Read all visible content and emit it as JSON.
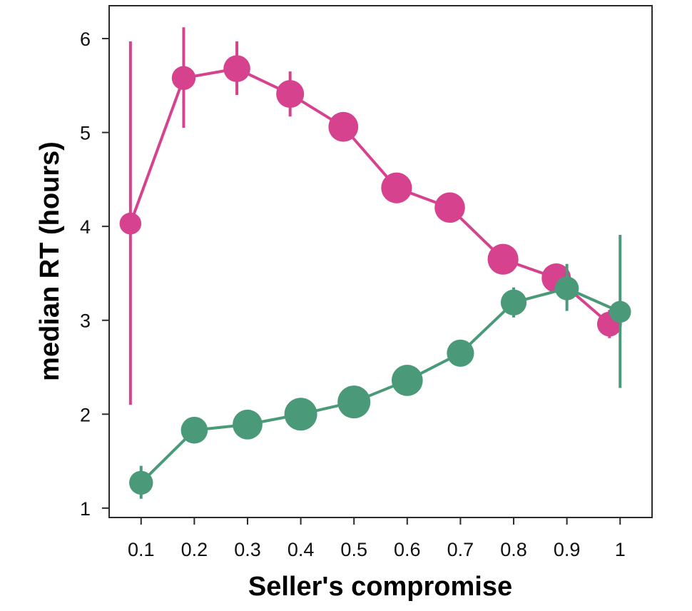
{
  "chart_data": {
    "type": "scatter",
    "xlabel": "Seller's compromise",
    "ylabel": "median RT (hours)",
    "xlim": [
      0.04,
      1.06
    ],
    "ylim": [
      0.9,
      6.35
    ],
    "x_ticks": [
      "0.1",
      "0.2",
      "0.3",
      "0.4",
      "0.5",
      "0.6",
      "0.7",
      "0.8",
      "0.9",
      "1"
    ],
    "y_ticks": [
      "1",
      "2",
      "3",
      "4",
      "5",
      "6"
    ],
    "grid": false,
    "legend": "none",
    "marker_size_note": "marker size varies by point",
    "series": [
      {
        "color": "#d6428e",
        "points": [
          {
            "x": 0.08,
            "y": 4.03,
            "err_low": 2.1,
            "err_high": 5.97,
            "size": 0.45
          },
          {
            "x": 0.18,
            "y": 5.58,
            "err_low": 5.05,
            "err_high": 6.12,
            "size": 0.55
          },
          {
            "x": 0.28,
            "y": 5.68,
            "err_low": 5.4,
            "err_high": 5.97,
            "size": 0.7
          },
          {
            "x": 0.38,
            "y": 5.41,
            "err_low": 5.17,
            "err_high": 5.65,
            "size": 0.75
          },
          {
            "x": 0.48,
            "y": 5.06,
            "err_low": 4.95,
            "err_high": 5.17,
            "size": 0.85
          },
          {
            "x": 0.58,
            "y": 4.41,
            "err_low": 4.32,
            "err_high": 4.5,
            "size": 0.9
          },
          {
            "x": 0.68,
            "y": 4.2,
            "err_low": 4.11,
            "err_high": 4.29,
            "size": 0.88
          },
          {
            "x": 0.78,
            "y": 3.65,
            "err_low": 3.57,
            "err_high": 3.73,
            "size": 0.9
          },
          {
            "x": 0.88,
            "y": 3.45,
            "err_low": 3.35,
            "err_high": 3.55,
            "size": 0.82
          },
          {
            "x": 0.98,
            "y": 2.96,
            "err_low": 2.81,
            "err_high": 3.11,
            "size": 0.6
          }
        ]
      },
      {
        "color": "#4a9a7a",
        "points": [
          {
            "x": 0.1,
            "y": 1.27,
            "err_low": 1.1,
            "err_high": 1.45,
            "size": 0.55
          },
          {
            "x": 0.2,
            "y": 1.83,
            "err_low": 1.76,
            "err_high": 1.9,
            "size": 0.7
          },
          {
            "x": 0.3,
            "y": 1.89,
            "err_low": 1.82,
            "err_high": 1.96,
            "size": 0.85
          },
          {
            "x": 0.4,
            "y": 2.0,
            "err_low": 1.93,
            "err_high": 2.07,
            "size": 1.0
          },
          {
            "x": 0.5,
            "y": 2.13,
            "err_low": 2.06,
            "err_high": 2.2,
            "size": 1.0
          },
          {
            "x": 0.6,
            "y": 2.36,
            "err_low": 2.28,
            "err_high": 2.44,
            "size": 0.92
          },
          {
            "x": 0.7,
            "y": 2.65,
            "err_low": 2.56,
            "err_high": 2.74,
            "size": 0.72
          },
          {
            "x": 0.8,
            "y": 3.19,
            "err_low": 3.03,
            "err_high": 3.35,
            "size": 0.65
          },
          {
            "x": 0.9,
            "y": 3.34,
            "err_low": 3.1,
            "err_high": 3.6,
            "size": 0.55
          },
          {
            "x": 1.0,
            "y": 3.09,
            "err_low": 2.28,
            "err_high": 3.91,
            "size": 0.45
          }
        ]
      }
    ]
  }
}
